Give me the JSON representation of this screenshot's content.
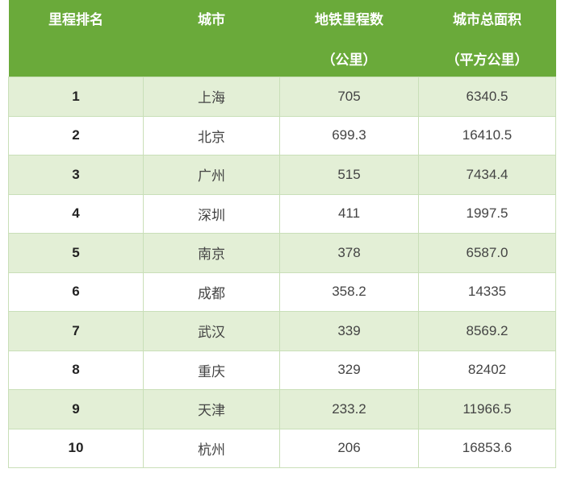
{
  "header": {
    "rank": {
      "line1": "里程排名",
      "line2": ""
    },
    "city": {
      "line1": "城市",
      "line2": ""
    },
    "metro": {
      "line1": "地铁里程数",
      "line2": "（公里）"
    },
    "area": {
      "line1": "城市总面积",
      "line2": "（平方公里）"
    }
  },
  "rows": [
    {
      "rank": "1",
      "city": "上海",
      "metro": "705",
      "area": "6340.5"
    },
    {
      "rank": "2",
      "city": "北京",
      "metro": "699.3",
      "area": "16410.5"
    },
    {
      "rank": "3",
      "city": "广州",
      "metro": "515",
      "area": "7434.4"
    },
    {
      "rank": "4",
      "city": "深圳",
      "metro": "411",
      "area": "1997.5"
    },
    {
      "rank": "5",
      "city": "南京",
      "metro": "378",
      "area": "6587.0"
    },
    {
      "rank": "6",
      "city": "成都",
      "metro": "358.2",
      "area": "14335"
    },
    {
      "rank": "7",
      "city": "武汉",
      "metro": "339",
      "area": "8569.2"
    },
    {
      "rank": "8",
      "city": "重庆",
      "metro": "329",
      "area": "82402"
    },
    {
      "rank": "9",
      "city": "天津",
      "metro": "233.2",
      "area": "11966.5"
    },
    {
      "rank": "10",
      "city": "杭州",
      "metro": "206",
      "area": "16853.6"
    }
  ],
  "colors": {
    "header_bg": "#6aaa3a",
    "stripe_bg": "#e3efd6",
    "border": "#c9dfb8"
  }
}
